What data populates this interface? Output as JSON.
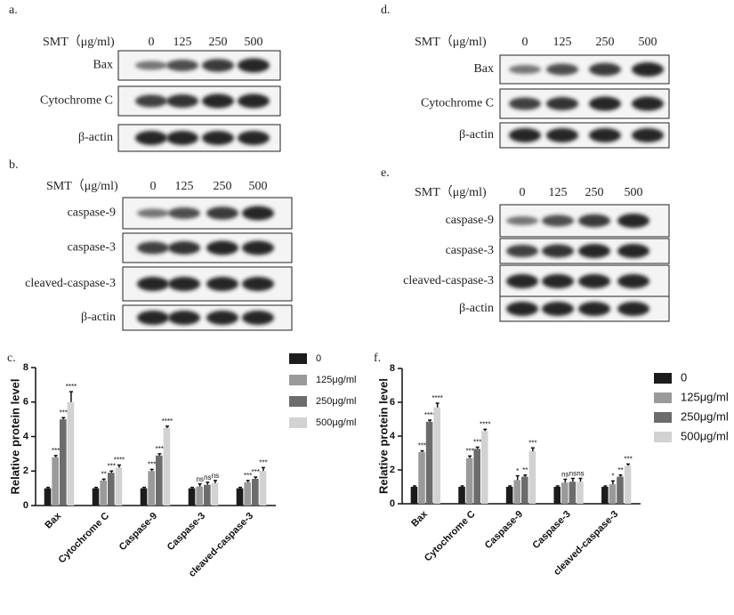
{
  "blots": [
    {
      "panel": "a.",
      "header": "SMT（μg/ml)",
      "doses": [
        "0",
        "125",
        "250",
        "500"
      ],
      "rows": [
        "Bax",
        "Cytochrome C",
        "β-actin"
      ]
    },
    {
      "panel": "b.",
      "header": "SMT（μg/ml)",
      "doses": [
        "0",
        "125",
        "250",
        "500"
      ],
      "rows": [
        "caspase-9",
        "caspase-3",
        "cleaved-caspase-3",
        "β-actin"
      ]
    },
    {
      "panel": "d.",
      "header": "SMT（μg/ml)",
      "doses": [
        "0",
        "125",
        "250",
        "500"
      ],
      "rows": [
        "Bax",
        "Cytochrome C",
        "β-actin"
      ]
    },
    {
      "panel": "e.",
      "header": "SMT（μg/ml)",
      "doses": [
        "0",
        "125",
        "250",
        "500"
      ],
      "rows": [
        "caspase-9",
        "caspase-3",
        "cleaved-caspase-3",
        "β-actin"
      ]
    }
  ],
  "chart_data": [
    {
      "type": "bar",
      "panel": "c.",
      "y_label": "Relative protein level",
      "categories": [
        "Bax",
        "Cytochrome C",
        "Caspase-9",
        "Caspase-3",
        "cleaved-caspase-3"
      ],
      "ylim": [
        0,
        8
      ],
      "yticks": [
        0,
        2,
        4,
        6,
        8
      ],
      "series": [
        {
          "name": "0",
          "color": "#1c1c1c",
          "values": [
            1,
            1,
            1,
            1,
            1
          ],
          "errors": [
            0.05,
            0.05,
            0.05,
            0.05,
            0.05
          ]
        },
        {
          "name": "125μg/ml",
          "color": "#9a9a9a",
          "values": [
            2.8,
            1.45,
            2.0,
            1.1,
            1.35
          ],
          "errors": [
            0.1,
            0.08,
            0.1,
            0.15,
            0.1
          ],
          "significance": [
            "***",
            "**",
            "***",
            "ns",
            "***"
          ]
        },
        {
          "name": "250μg/ml",
          "color": "#6c6c6c",
          "values": [
            5.0,
            1.9,
            2.9,
            1.2,
            1.55
          ],
          "errors": [
            0.1,
            0.1,
            0.1,
            0.15,
            0.1
          ],
          "significance": [
            "***",
            "***",
            "***",
            "ns",
            "***"
          ]
        },
        {
          "name": "500μg/ml",
          "color": "#d2d2d2",
          "values": [
            6.0,
            2.2,
            4.5,
            1.3,
            2.0
          ],
          "errors": [
            0.6,
            0.15,
            0.1,
            0.15,
            0.2
          ],
          "significance": [
            "****",
            "****",
            "****",
            "ns",
            "***"
          ]
        }
      ]
    },
    {
      "type": "bar",
      "panel": "f.",
      "y_label": "Relative protein level",
      "categories": [
        "Bax",
        "Cytochrome C",
        "Caspase-9",
        "Caspase-3",
        "cleaved-caspase-3"
      ],
      "ylim": [
        0,
        8
      ],
      "yticks": [
        0,
        2,
        4,
        6,
        8
      ],
      "series": [
        {
          "name": "0",
          "color": "#1c1c1c",
          "values": [
            1,
            1,
            1,
            1,
            1
          ],
          "errors": [
            0.05,
            0.05,
            0.05,
            0.05,
            0.05
          ]
        },
        {
          "name": "125μg/ml",
          "color": "#9a9a9a",
          "values": [
            3.05,
            2.7,
            1.4,
            1.25,
            1.15
          ],
          "errors": [
            0.08,
            0.12,
            0.25,
            0.2,
            0.2
          ],
          "significance": [
            "***",
            "***",
            "*",
            "ns",
            "*"
          ]
        },
        {
          "name": "250μg/ml",
          "color": "#6c6c6c",
          "values": [
            4.85,
            3.25,
            1.6,
            1.3,
            1.6
          ],
          "errors": [
            0.1,
            0.1,
            0.1,
            0.2,
            0.1
          ],
          "significance": [
            "****",
            "***",
            "**",
            "ns",
            "**"
          ]
        },
        {
          "name": "500μg/ml",
          "color": "#d2d2d2",
          "values": [
            5.7,
            4.3,
            3.1,
            1.3,
            2.25
          ],
          "errors": [
            0.25,
            0.1,
            0.2,
            0.2,
            0.1
          ],
          "significance": [
            "****",
            "****",
            "***",
            "ns",
            "***"
          ]
        }
      ]
    }
  ]
}
